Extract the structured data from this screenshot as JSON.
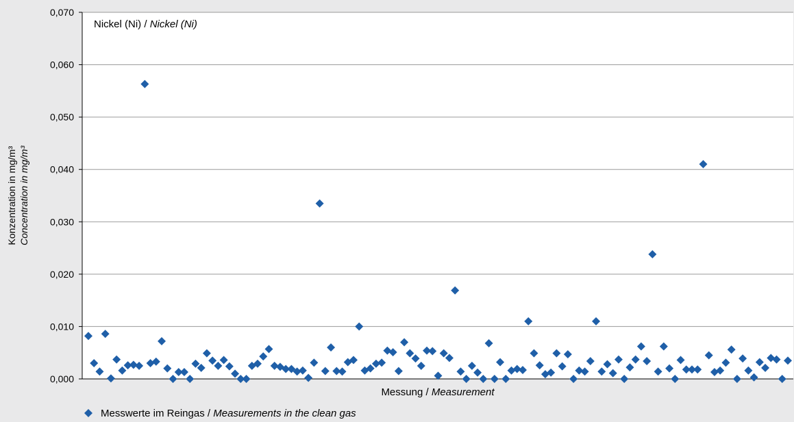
{
  "chart_data": {
    "type": "scatter",
    "title": "Nickel (Ni)",
    "title_en": "Nickel (Ni)",
    "xlabel": "Messung",
    "xlabel_en": "Measurement",
    "ylabel": "Konzentration in mg/m³",
    "ylabel_en": "Concentration in mg/m³",
    "ylim": [
      0,
      0.07
    ],
    "yticks": [
      "0,000",
      "0,010",
      "0,020",
      "0,030",
      "0,040",
      "0,050",
      "0,060",
      "0,070"
    ],
    "grid": true,
    "legend_position": "bottom-left",
    "marker": "diamond",
    "color": "#1f5fa8",
    "series": [
      {
        "name": "Messwerte im Reingas",
        "name_en": "Measurements in the clean gas",
        "values": [
          0.0082,
          0.003,
          0.0014,
          0.0086,
          0.0001,
          0.0037,
          0.0016,
          0.0026,
          0.0027,
          0.0025,
          0.0563,
          0.003,
          0.0033,
          0.0072,
          0.002,
          0.0,
          0.0013,
          0.0013,
          0.0,
          0.0029,
          0.0021,
          0.0049,
          0.0035,
          0.0025,
          0.0036,
          0.0024,
          0.001,
          0.0,
          0.0,
          0.0025,
          0.0029,
          0.0043,
          0.0057,
          0.0025,
          0.0023,
          0.0019,
          0.0019,
          0.0014,
          0.0016,
          0.0002,
          0.0031,
          0.0335,
          0.0015,
          0.006,
          0.0015,
          0.0014,
          0.0032,
          0.0036,
          0.01,
          0.0016,
          0.002,
          0.0029,
          0.0031,
          0.0054,
          0.0051,
          0.0015,
          0.007,
          0.0049,
          0.0039,
          0.0025,
          0.0054,
          0.0053,
          0.0006,
          0.0049,
          0.004,
          0.0169,
          0.0014,
          0.0,
          0.0025,
          0.0012,
          0.0,
          0.0068,
          0.0,
          0.0032,
          0.0,
          0.0016,
          0.0019,
          0.0017,
          0.011,
          0.0049,
          0.0026,
          0.0009,
          0.0012,
          0.0049,
          0.0024,
          0.0047,
          0.0,
          0.0016,
          0.0014,
          0.0034,
          0.011,
          0.0014,
          0.0028,
          0.0011,
          0.0037,
          0.0,
          0.0022,
          0.0037,
          0.0062,
          0.0034,
          0.0238,
          0.0014,
          0.0062,
          0.002,
          0.0,
          0.0036,
          0.0018,
          0.0018,
          0.0018,
          0.041,
          0.0045,
          0.0013,
          0.0016,
          0.0031,
          0.0056,
          0.0,
          0.0039,
          0.0016,
          0.0003,
          0.0032,
          0.0021,
          0.004,
          0.0037,
          0.0,
          0.0035
        ]
      }
    ]
  }
}
